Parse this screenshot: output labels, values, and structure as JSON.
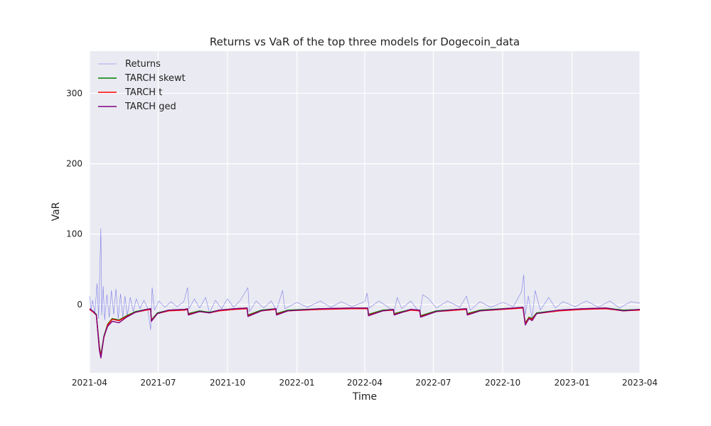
{
  "chart_data": {
    "type": "line",
    "title": "Returns vs VaR of the top three models for Dogecoin_data",
    "xlabel": "Time",
    "ylabel": "VaR",
    "x_ticks": [
      "2021-04",
      "2021-07",
      "2021-10",
      "2022-01",
      "2022-04",
      "2022-07",
      "2022-10",
      "2023-01",
      "2023-04"
    ],
    "x_range": [
      "2021-04-01",
      "2023-04-01"
    ],
    "y_ticks": [
      0,
      100,
      200,
      300
    ],
    "ylim": [
      -97,
      360
    ],
    "grid": true,
    "legend_position": "top-left",
    "colors": {
      "background": "#eaeaf2",
      "grid": "#ffffff",
      "returns": "#6a6ae8",
      "skewt": "#008000",
      "t": "#ff0000",
      "ged": "#800080"
    },
    "series": [
      {
        "name": "Returns",
        "color": "#6a6ae8",
        "points": [
          [
            "2021-04-01",
            12
          ],
          [
            "2021-04-03",
            -8
          ],
          [
            "2021-04-05",
            6
          ],
          [
            "2021-04-08",
            -12
          ],
          [
            "2021-04-11",
            30
          ],
          [
            "2021-04-13",
            -20
          ],
          [
            "2021-04-16",
            108
          ],
          [
            "2021-04-17",
            -15
          ],
          [
            "2021-04-19",
            26
          ],
          [
            "2021-04-21",
            -22
          ],
          [
            "2021-04-24",
            14
          ],
          [
            "2021-04-27",
            -18
          ],
          [
            "2021-04-30",
            20
          ],
          [
            "2021-05-03",
            -14
          ],
          [
            "2021-05-06",
            22
          ],
          [
            "2021-05-09",
            -20
          ],
          [
            "2021-05-12",
            15
          ],
          [
            "2021-05-15",
            -18
          ],
          [
            "2021-05-18",
            12
          ],
          [
            "2021-05-21",
            -16
          ],
          [
            "2021-05-25",
            10
          ],
          [
            "2021-05-29",
            -10
          ],
          [
            "2021-06-02",
            8
          ],
          [
            "2021-06-07",
            -6
          ],
          [
            "2021-06-12",
            6
          ],
          [
            "2021-06-17",
            -5
          ],
          [
            "2021-06-21",
            -36
          ],
          [
            "2021-06-23",
            24
          ],
          [
            "2021-06-26",
            -8
          ],
          [
            "2021-07-02",
            5
          ],
          [
            "2021-07-10",
            -4
          ],
          [
            "2021-07-18",
            4
          ],
          [
            "2021-07-26",
            -3
          ],
          [
            "2021-08-04",
            4
          ],
          [
            "2021-08-09",
            24
          ],
          [
            "2021-08-11",
            -6
          ],
          [
            "2021-08-18",
            8
          ],
          [
            "2021-08-25",
            -5
          ],
          [
            "2021-09-02",
            10
          ],
          [
            "2021-09-07",
            -12
          ],
          [
            "2021-09-15",
            6
          ],
          [
            "2021-09-23",
            -6
          ],
          [
            "2021-10-01",
            8
          ],
          [
            "2021-10-09",
            -4
          ],
          [
            "2021-10-18",
            6
          ],
          [
            "2021-10-28",
            24
          ],
          [
            "2021-10-30",
            -10
          ],
          [
            "2021-11-08",
            5
          ],
          [
            "2021-11-18",
            -5
          ],
          [
            "2021-11-28",
            5
          ],
          [
            "2021-12-05",
            -8
          ],
          [
            "2021-12-13",
            20
          ],
          [
            "2021-12-16",
            -6
          ],
          [
            "2022-01-01",
            3
          ],
          [
            "2022-01-15",
            -4
          ],
          [
            "2022-02-01",
            5
          ],
          [
            "2022-02-15",
            -4
          ],
          [
            "2022-03-01",
            4
          ],
          [
            "2022-03-15",
            -3
          ],
          [
            "2022-04-01",
            4
          ],
          [
            "2022-04-04",
            16
          ],
          [
            "2022-04-07",
            -5
          ],
          [
            "2022-04-20",
            5
          ],
          [
            "2022-05-05",
            -6
          ],
          [
            "2022-05-10",
            -10
          ],
          [
            "2022-05-14",
            10
          ],
          [
            "2022-05-20",
            -6
          ],
          [
            "2022-06-01",
            5
          ],
          [
            "2022-06-13",
            -12
          ],
          [
            "2022-06-17",
            14
          ],
          [
            "2022-06-25",
            8
          ],
          [
            "2022-07-05",
            -5
          ],
          [
            "2022-07-20",
            5
          ],
          [
            "2022-08-05",
            -4
          ],
          [
            "2022-08-14",
            12
          ],
          [
            "2022-08-19",
            -8
          ],
          [
            "2022-09-01",
            4
          ],
          [
            "2022-09-15",
            -4
          ],
          [
            "2022-10-01",
            3
          ],
          [
            "2022-10-15",
            -3
          ],
          [
            "2022-10-26",
            18
          ],
          [
            "2022-10-29",
            42
          ],
          [
            "2022-10-31",
            -15
          ],
          [
            "2022-11-04",
            12
          ],
          [
            "2022-11-09",
            -20
          ],
          [
            "2022-11-13",
            20
          ],
          [
            "2022-11-20",
            -8
          ],
          [
            "2022-12-01",
            10
          ],
          [
            "2022-12-10",
            -5
          ],
          [
            "2022-12-20",
            4
          ],
          [
            "2023-01-05",
            -3
          ],
          [
            "2023-01-20",
            5
          ],
          [
            "2023-02-05",
            -4
          ],
          [
            "2023-02-20",
            5
          ],
          [
            "2023-03-05",
            -5
          ],
          [
            "2023-03-20",
            4
          ],
          [
            "2023-04-01",
            2
          ]
        ]
      },
      {
        "name": "TARCH skewt",
        "color": "#008000",
        "points": [
          [
            "2021-04-01",
            -6
          ],
          [
            "2021-04-06",
            -10
          ],
          [
            "2021-04-10",
            -14
          ],
          [
            "2021-04-14",
            -60
          ],
          [
            "2021-04-16",
            -72
          ],
          [
            "2021-04-20",
            -45
          ],
          [
            "2021-04-25",
            -28
          ],
          [
            "2021-05-01",
            -20
          ],
          [
            "2021-05-10",
            -22
          ],
          [
            "2021-05-20",
            -16
          ],
          [
            "2021-06-01",
            -10
          ],
          [
            "2021-06-15",
            -7
          ],
          [
            "2021-06-21",
            -6
          ],
          [
            "2021-06-22",
            -22
          ],
          [
            "2021-06-30",
            -12
          ],
          [
            "2021-07-15",
            -8
          ],
          [
            "2021-08-05",
            -7
          ],
          [
            "2021-08-09",
            -6
          ],
          [
            "2021-08-10",
            -13
          ],
          [
            "2021-08-25",
            -9
          ],
          [
            "2021-09-07",
            -11
          ],
          [
            "2021-09-20",
            -8
          ],
          [
            "2021-10-10",
            -6
          ],
          [
            "2021-10-27",
            -5
          ],
          [
            "2021-10-28",
            -15
          ],
          [
            "2021-11-15",
            -8
          ],
          [
            "2021-12-04",
            -6
          ],
          [
            "2021-12-05",
            -13
          ],
          [
            "2021-12-20",
            -8
          ],
          [
            "2022-02-01",
            -6
          ],
          [
            "2022-03-15",
            -5
          ],
          [
            "2022-04-05",
            -5
          ],
          [
            "2022-04-06",
            -14
          ],
          [
            "2022-04-25",
            -8
          ],
          [
            "2022-05-09",
            -7
          ],
          [
            "2022-05-10",
            -13
          ],
          [
            "2022-06-01",
            -7
          ],
          [
            "2022-06-13",
            -8
          ],
          [
            "2022-06-14",
            -16
          ],
          [
            "2022-07-05",
            -9
          ],
          [
            "2022-08-01",
            -7
          ],
          [
            "2022-08-14",
            -6
          ],
          [
            "2022-08-15",
            -13
          ],
          [
            "2022-09-01",
            -8
          ],
          [
            "2022-10-15",
            -5
          ],
          [
            "2022-10-28",
            -4
          ],
          [
            "2022-10-29",
            -12
          ],
          [
            "2022-10-31",
            -26
          ],
          [
            "2022-11-05",
            -18
          ],
          [
            "2022-11-09",
            -20
          ],
          [
            "2022-11-15",
            -12
          ],
          [
            "2022-12-15",
            -8
          ],
          [
            "2023-01-15",
            -6
          ],
          [
            "2023-02-15",
            -5
          ],
          [
            "2023-03-10",
            -8
          ],
          [
            "2023-04-01",
            -7
          ]
        ]
      },
      {
        "name": "TARCH t",
        "color": "#ff0000",
        "points": [
          [
            "2021-04-01",
            -7
          ],
          [
            "2021-04-06",
            -11
          ],
          [
            "2021-04-10",
            -15
          ],
          [
            "2021-04-14",
            -62
          ],
          [
            "2021-04-16",
            -74
          ],
          [
            "2021-04-20",
            -47
          ],
          [
            "2021-04-25",
            -29
          ],
          [
            "2021-05-01",
            -21
          ],
          [
            "2021-05-10",
            -23
          ],
          [
            "2021-05-20",
            -17
          ],
          [
            "2021-06-01",
            -11
          ],
          [
            "2021-06-15",
            -8
          ],
          [
            "2021-06-21",
            -7
          ],
          [
            "2021-06-22",
            -23
          ],
          [
            "2021-06-30",
            -13
          ],
          [
            "2021-07-15",
            -9
          ],
          [
            "2021-08-05",
            -8
          ],
          [
            "2021-08-09",
            -7
          ],
          [
            "2021-08-10",
            -14
          ],
          [
            "2021-08-25",
            -10
          ],
          [
            "2021-09-07",
            -12
          ],
          [
            "2021-09-20",
            -9
          ],
          [
            "2021-10-10",
            -7
          ],
          [
            "2021-10-27",
            -6
          ],
          [
            "2021-10-28",
            -16
          ],
          [
            "2021-11-15",
            -9
          ],
          [
            "2021-12-04",
            -7
          ],
          [
            "2021-12-05",
            -14
          ],
          [
            "2021-12-20",
            -9
          ],
          [
            "2022-02-01",
            -7
          ],
          [
            "2022-03-15",
            -6
          ],
          [
            "2022-04-05",
            -6
          ],
          [
            "2022-04-06",
            -15
          ],
          [
            "2022-04-25",
            -9
          ],
          [
            "2022-05-09",
            -8
          ],
          [
            "2022-05-10",
            -14
          ],
          [
            "2022-06-01",
            -8
          ],
          [
            "2022-06-13",
            -9
          ],
          [
            "2022-06-14",
            -17
          ],
          [
            "2022-07-05",
            -10
          ],
          [
            "2022-08-01",
            -8
          ],
          [
            "2022-08-14",
            -7
          ],
          [
            "2022-08-15",
            -14
          ],
          [
            "2022-09-01",
            -9
          ],
          [
            "2022-10-15",
            -6
          ],
          [
            "2022-10-28",
            -5
          ],
          [
            "2022-10-29",
            -13
          ],
          [
            "2022-10-31",
            -27
          ],
          [
            "2022-11-05",
            -19
          ],
          [
            "2022-11-09",
            -21
          ],
          [
            "2022-11-15",
            -13
          ],
          [
            "2022-12-15",
            -9
          ],
          [
            "2023-01-15",
            -7
          ],
          [
            "2023-02-15",
            -6
          ],
          [
            "2023-03-10",
            -9
          ],
          [
            "2023-04-01",
            -8
          ]
        ]
      },
      {
        "name": "TARCH ged",
        "color": "#800080",
        "points": [
          [
            "2021-04-01",
            -6
          ],
          [
            "2021-04-06",
            -10
          ],
          [
            "2021-04-10",
            -15
          ],
          [
            "2021-04-14",
            -65
          ],
          [
            "2021-04-16",
            -76
          ],
          [
            "2021-04-20",
            -46
          ],
          [
            "2021-04-25",
            -31
          ],
          [
            "2021-05-01",
            -24
          ],
          [
            "2021-05-10",
            -26
          ],
          [
            "2021-05-20",
            -18
          ],
          [
            "2021-06-01",
            -11
          ],
          [
            "2021-06-15",
            -7
          ],
          [
            "2021-06-21",
            -6
          ],
          [
            "2021-06-22",
            -24
          ],
          [
            "2021-06-30",
            -13
          ],
          [
            "2021-07-15",
            -8
          ],
          [
            "2021-08-05",
            -7
          ],
          [
            "2021-08-09",
            -6
          ],
          [
            "2021-08-10",
            -15
          ],
          [
            "2021-08-25",
            -10
          ],
          [
            "2021-09-07",
            -12
          ],
          [
            "2021-09-20",
            -8
          ],
          [
            "2021-10-10",
            -6
          ],
          [
            "2021-10-27",
            -5
          ],
          [
            "2021-10-28",
            -17
          ],
          [
            "2021-11-15",
            -9
          ],
          [
            "2021-12-04",
            -6
          ],
          [
            "2021-12-05",
            -15
          ],
          [
            "2021-12-20",
            -9
          ],
          [
            "2022-02-01",
            -6
          ],
          [
            "2022-03-15",
            -5
          ],
          [
            "2022-04-05",
            -5
          ],
          [
            "2022-04-06",
            -16
          ],
          [
            "2022-04-25",
            -9
          ],
          [
            "2022-05-09",
            -7
          ],
          [
            "2022-05-10",
            -15
          ],
          [
            "2022-06-01",
            -7
          ],
          [
            "2022-06-13",
            -8
          ],
          [
            "2022-06-14",
            -18
          ],
          [
            "2022-07-05",
            -10
          ],
          [
            "2022-08-01",
            -7
          ],
          [
            "2022-08-14",
            -6
          ],
          [
            "2022-08-15",
            -15
          ],
          [
            "2022-09-01",
            -9
          ],
          [
            "2022-10-15",
            -5
          ],
          [
            "2022-10-28",
            -4
          ],
          [
            "2022-10-29",
            -13
          ],
          [
            "2022-10-31",
            -29
          ],
          [
            "2022-11-05",
            -20
          ],
          [
            "2022-11-09",
            -23
          ],
          [
            "2022-11-15",
            -13
          ],
          [
            "2022-12-15",
            -8
          ],
          [
            "2023-01-15",
            -6
          ],
          [
            "2023-02-15",
            -5
          ],
          [
            "2023-03-10",
            -9
          ],
          [
            "2023-04-01",
            -7
          ]
        ]
      }
    ]
  }
}
